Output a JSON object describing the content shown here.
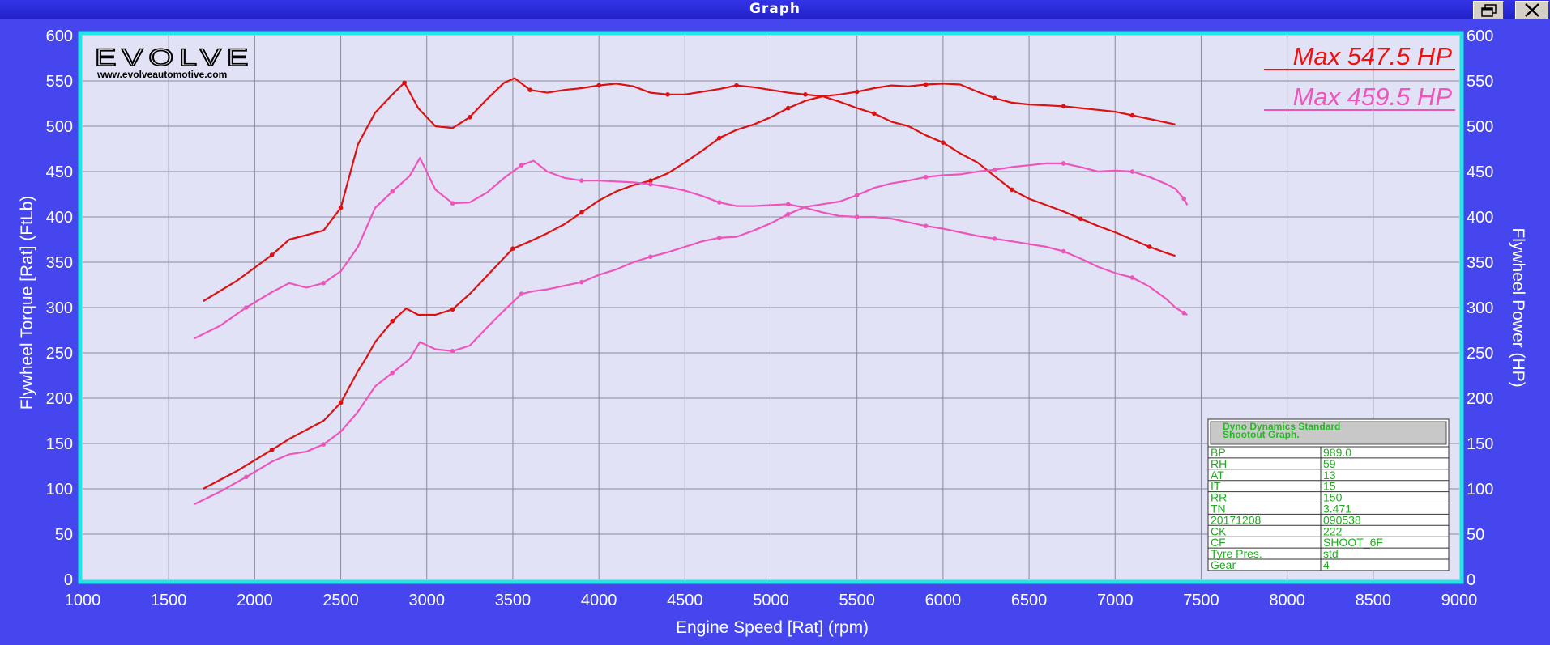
{
  "window": {
    "title": "Graph",
    "restore_icon": "restore-icon",
    "close_icon": "close-icon"
  },
  "chart_data": {
    "type": "line",
    "xlabel": "Engine Speed [Rat] (rpm)",
    "ylabel_left": "Flywheel Torque [Rat] (FtLb)",
    "ylabel_right": "Flywheel Power (HP)",
    "xlim": [
      1000,
      9000
    ],
    "ylim": [
      0,
      600
    ],
    "x_ticks": [
      "1000",
      "1500",
      "2000",
      "2500",
      "3000",
      "3500",
      "4000",
      "4500",
      "5000",
      "5500",
      "6000",
      "6500",
      "7000",
      "7500",
      "8000",
      "8500",
      "9000"
    ],
    "y_ticks": [
      "0",
      "50",
      "100",
      "150",
      "200",
      "250",
      "300",
      "350",
      "400",
      "450",
      "500",
      "550",
      "600"
    ],
    "grid": true,
    "colors": {
      "red": "#dd1111",
      "pink": "#ee55bb",
      "plot_bg": "#e2e2f6",
      "frame": "#22e6e6"
    },
    "series": [
      {
        "color": "red",
        "x": [
          1700,
          1900,
          2100,
          2200,
          2300,
          2400,
          2500,
          2600,
          2700,
          2800,
          2870,
          2950,
          3050,
          3150,
          3250,
          3350,
          3450,
          3510,
          3600,
          3700,
          3800,
          3900,
          4000,
          4100,
          4200,
          4300,
          4400,
          4500,
          4600,
          4700,
          4800,
          4900,
          5000,
          5100,
          5200,
          5300,
          5400,
          5500,
          5600,
          5700,
          5800,
          5900,
          6000,
          6100,
          6200,
          6300,
          6400,
          6500,
          6600,
          6700,
          6800,
          6900,
          7000,
          7100,
          7200,
          7300,
          7350
        ],
        "values": [
          307,
          330,
          358,
          375,
          380,
          385,
          410,
          480,
          515,
          535,
          548,
          520,
          500,
          498,
          510,
          530,
          548,
          553,
          540,
          537,
          540,
          542,
          545,
          547,
          544,
          537,
          535,
          535,
          538,
          541,
          545,
          543,
          540,
          537,
          535,
          533,
          527,
          520,
          514,
          505,
          500,
          490,
          482,
          470,
          460,
          445,
          430,
          420,
          413,
          406,
          398,
          390,
          383,
          375,
          367,
          360,
          357
        ]
      },
      {
        "color": "red",
        "x": [
          1700,
          1900,
          2100,
          2200,
          2300,
          2400,
          2500,
          2600,
          2650,
          2700,
          2800,
          2880,
          2950,
          3050,
          3150,
          3250,
          3350,
          3450,
          3500,
          3600,
          3700,
          3800,
          3900,
          4000,
          4100,
          4200,
          4300,
          4400,
          4500,
          4600,
          4700,
          4800,
          4900,
          5000,
          5100,
          5200,
          5300,
          5400,
          5500,
          5600,
          5700,
          5800,
          5900,
          6000,
          6100,
          6200,
          6300,
          6400,
          6500,
          6600,
          6700,
          6800,
          6900,
          7000,
          7100,
          7200,
          7350
        ],
        "values": [
          100,
          120,
          143,
          155,
          165,
          175,
          195,
          230,
          245,
          262,
          285,
          299,
          292,
          292,
          298,
          315,
          335,
          355,
          365,
          373,
          382,
          392,
          405,
          418,
          428,
          435,
          440,
          448,
          460,
          473,
          487,
          496,
          502,
          510,
          520,
          528,
          533,
          535,
          538,
          542,
          545,
          544,
          546,
          547,
          546,
          538,
          531,
          526,
          524,
          523,
          522,
          520,
          518,
          516,
          512,
          508,
          502
        ]
      },
      {
        "color": "pink",
        "x": [
          1650,
          1800,
          1950,
          2100,
          2200,
          2300,
          2400,
          2500,
          2600,
          2700,
          2800,
          2900,
          2960,
          3050,
          3150,
          3250,
          3350,
          3450,
          3550,
          3620,
          3700,
          3800,
          3900,
          4000,
          4100,
          4200,
          4300,
          4400,
          4500,
          4600,
          4700,
          4800,
          4900,
          5000,
          5100,
          5200,
          5300,
          5400,
          5500,
          5600,
          5700,
          5800,
          5900,
          6000,
          6100,
          6200,
          6300,
          6400,
          6500,
          6600,
          6700,
          6800,
          6900,
          7000,
          7100,
          7200,
          7300,
          7350,
          7400,
          7420
        ],
        "values": [
          266,
          280,
          300,
          317,
          327,
          322,
          327,
          340,
          367,
          410,
          428,
          445,
          465,
          430,
          415,
          416,
          427,
          443,
          457,
          462,
          450,
          443,
          440,
          440,
          439,
          438,
          436,
          433,
          429,
          423,
          416,
          412,
          412,
          413,
          414,
          410,
          405,
          401,
          400,
          400,
          398,
          394,
          390,
          387,
          383,
          379,
          376,
          373,
          370,
          367,
          362,
          354,
          345,
          338,
          333,
          323,
          309,
          300,
          294,
          292
        ]
      },
      {
        "color": "pink",
        "x": [
          1650,
          1800,
          1950,
          2100,
          2200,
          2300,
          2400,
          2500,
          2600,
          2700,
          2800,
          2900,
          2960,
          3050,
          3150,
          3250,
          3350,
          3450,
          3550,
          3620,
          3700,
          3800,
          3900,
          4000,
          4100,
          4200,
          4300,
          4400,
          4500,
          4600,
          4700,
          4800,
          4900,
          5000,
          5100,
          5200,
          5300,
          5400,
          5500,
          5600,
          5700,
          5800,
          5900,
          6000,
          6100,
          6200,
          6300,
          6400,
          6500,
          6600,
          6700,
          6800,
          6900,
          7000,
          7100,
          7200,
          7300,
          7350,
          7400,
          7420
        ],
        "values": [
          83,
          97,
          113,
          130,
          138,
          141,
          149,
          163,
          185,
          213,
          228,
          243,
          262,
          254,
          252,
          258,
          278,
          297,
          315,
          318,
          320,
          324,
          328,
          336,
          342,
          350,
          356,
          361,
          367,
          373,
          377,
          378,
          385,
          393,
          403,
          411,
          414,
          417,
          424,
          432,
          437,
          440,
          444,
          446,
          447,
          450,
          452,
          455,
          457,
          459,
          459,
          455,
          450,
          451,
          450,
          444,
          436,
          431,
          420,
          413
        ]
      }
    ],
    "max_labels": [
      {
        "text": "Max 547.5 HP",
        "color": "#ee1111"
      },
      {
        "text": "Max 459.5 HP",
        "color": "#ee55bb"
      }
    ],
    "logo": {
      "brand": "EVOLVE",
      "url": "www.evolveautomotive.com"
    },
    "info_table": {
      "header": [
        "Dyno Dynamics Standard",
        "Shootout Graph."
      ],
      "rows": [
        [
          "BP",
          "989.0"
        ],
        [
          "RH",
          "59"
        ],
        [
          "AT",
          "13"
        ],
        [
          "IT",
          "15"
        ],
        [
          "RR",
          "150"
        ],
        [
          "TN",
          "3.471"
        ],
        [
          "20171208",
          "090538"
        ],
        [
          "CK",
          "222"
        ],
        [
          "CF",
          "SHOOT_6F"
        ],
        [
          "Tyre Pres.",
          "std"
        ],
        [
          "Gear",
          "4"
        ]
      ]
    }
  }
}
